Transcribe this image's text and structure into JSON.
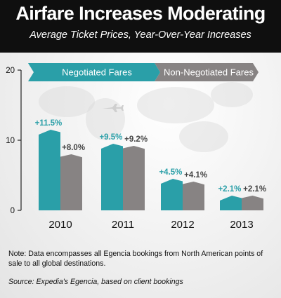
{
  "header": {
    "title": "Airfare Increases Moderating",
    "subtitle": "Average Ticket Prices, Year-Over-Year Increases"
  },
  "colors": {
    "negotiated": "#2a9fa8",
    "non_negotiated": "#878383",
    "header_bg": "#0f0f0f"
  },
  "chart_data": {
    "type": "bar",
    "title": "Airfare Increases Moderating",
    "subtitle": "Average Ticket Prices, Year-Over-Year Increases",
    "categories": [
      "2010",
      "2011",
      "2012",
      "2013"
    ],
    "series": [
      {
        "name": "Negotiated Fares",
        "values": [
          11.5,
          9.5,
          4.5,
          2.1
        ],
        "labels": [
          "+11.5%",
          "+9.5%",
          "+4.5%",
          "+2.1%"
        ]
      },
      {
        "name": "Non-Negotiated Fares",
        "values": [
          8.0,
          9.2,
          4.1,
          2.1
        ],
        "labels": [
          "+8.0%",
          "+9.2%",
          "+4.1%",
          "+2.1%"
        ]
      }
    ],
    "ylim": [
      0,
      20
    ],
    "yticks": [
      "0",
      "10",
      "20"
    ],
    "xlabel": "",
    "ylabel": "",
    "legend": "top",
    "grid": false
  },
  "footer": {
    "note": "Note: Data encompasses all Egencia bookings from North American points of sale to all global destinations.",
    "source": "Source: Expedia's Egencia, based on client bookings"
  }
}
